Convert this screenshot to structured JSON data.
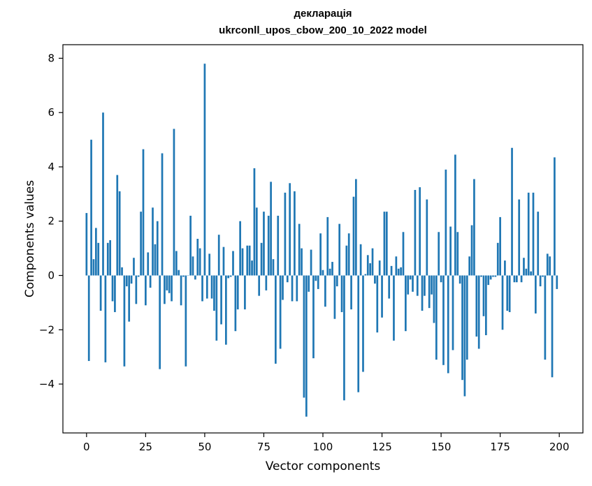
{
  "chart_data": {
    "type": "bar",
    "title": "декларація",
    "subtitle": "ukrconll_upos_cbow_200_10_2022 model",
    "xlabel": "Vector components",
    "ylabel": "Components values",
    "xlim": [
      -10,
      210
    ],
    "ylim": [
      -5.8,
      8.5
    ],
    "x_ticks": [
      0,
      25,
      50,
      75,
      100,
      125,
      150,
      175,
      200
    ],
    "y_ticks": [
      -4,
      -2,
      0,
      2,
      4,
      6,
      8
    ],
    "y_tick_labels": [
      "−4",
      "−2",
      "0",
      "2",
      "4",
      "6",
      "8"
    ],
    "bar_color": "#1f77b4",
    "grid": false,
    "x": [
      0,
      1,
      2,
      3,
      4,
      5,
      6,
      7,
      8,
      9,
      10,
      11,
      12,
      13,
      14,
      15,
      16,
      17,
      18,
      19,
      20,
      21,
      22,
      23,
      24,
      25,
      26,
      27,
      28,
      29,
      30,
      31,
      32,
      33,
      34,
      35,
      36,
      37,
      38,
      39,
      40,
      41,
      42,
      43,
      44,
      45,
      46,
      47,
      48,
      49,
      50,
      51,
      52,
      53,
      54,
      55,
      56,
      57,
      58,
      59,
      60,
      61,
      62,
      63,
      64,
      65,
      66,
      67,
      68,
      69,
      70,
      71,
      72,
      73,
      74,
      75,
      76,
      77,
      78,
      79,
      80,
      81,
      82,
      83,
      84,
      85,
      86,
      87,
      88,
      89,
      90,
      91,
      92,
      93,
      94,
      95,
      96,
      97,
      98,
      99,
      100,
      101,
      102,
      103,
      104,
      105,
      106,
      107,
      108,
      109,
      110,
      111,
      112,
      113,
      114,
      115,
      116,
      117,
      118,
      119,
      120,
      121,
      122,
      123,
      124,
      125,
      126,
      127,
      128,
      129,
      130,
      131,
      132,
      133,
      134,
      135,
      136,
      137,
      138,
      139,
      140,
      141,
      142,
      143,
      144,
      145,
      146,
      147,
      148,
      149,
      150,
      151,
      152,
      153,
      154,
      155,
      156,
      157,
      158,
      159,
      160,
      161,
      162,
      163,
      164,
      165,
      166,
      167,
      168,
      169,
      170,
      171,
      172,
      173,
      174,
      175,
      176,
      177,
      178,
      179,
      180,
      181,
      182,
      183,
      184,
      185,
      186,
      187,
      188,
      189,
      190,
      191,
      192,
      193,
      194,
      195,
      196,
      197,
      198,
      199
    ],
    "values": [
      2.3,
      -3.15,
      5.0,
      0.6,
      1.75,
      1.2,
      -1.3,
      6.0,
      -3.2,
      1.2,
      1.3,
      -0.95,
      -1.35,
      3.7,
      3.1,
      0.3,
      -3.35,
      -0.4,
      -1.7,
      -0.3,
      0.65,
      -1.05,
      -0.05,
      2.35,
      4.65,
      -1.1,
      0.85,
      -0.45,
      2.5,
      1.15,
      2.0,
      -3.45,
      4.5,
      -1.05,
      -0.55,
      -0.65,
      -0.95,
      5.4,
      0.9,
      0.2,
      -1.1,
      -0.05,
      -3.35,
      0.0,
      2.2,
      0.7,
      -0.15,
      1.35,
      1.0,
      -0.95,
      7.8,
      -0.85,
      0.8,
      -0.85,
      -1.3,
      -2.4,
      1.5,
      -1.8,
      1.05,
      -2.55,
      -0.1,
      -0.05,
      0.9,
      -2.05,
      -1.25,
      2.0,
      1.0,
      -1.25,
      1.1,
      1.1,
      0.55,
      3.95,
      2.5,
      -0.75,
      1.2,
      2.35,
      -0.55,
      2.2,
      3.45,
      0.6,
      -3.25,
      2.2,
      -2.7,
      -0.9,
      3.05,
      -0.25,
      3.4,
      -0.95,
      3.1,
      -0.95,
      1.9,
      1.0,
      -4.5,
      -5.2,
      -0.6,
      0.95,
      -3.05,
      -0.2,
      -0.5,
      1.55,
      0.2,
      -1.15,
      2.15,
      0.25,
      0.5,
      -1.6,
      -0.4,
      1.9,
      -1.35,
      -4.6,
      1.1,
      1.55,
      -1.25,
      2.9,
      3.55,
      -4.3,
      1.15,
      -3.55,
      0.05,
      0.75,
      0.45,
      1.0,
      -0.3,
      -2.1,
      0.55,
      -1.55,
      2.35,
      2.35,
      -0.85,
      0.35,
      -2.4,
      0.7,
      0.25,
      0.3,
      1.6,
      -2.05,
      -0.7,
      -0.15,
      -0.6,
      3.15,
      -0.75,
      3.25,
      -1.3,
      -0.75,
      2.8,
      -1.2,
      -0.7,
      -1.75,
      -3.1,
      1.6,
      -0.25,
      -3.3,
      3.9,
      -3.6,
      1.8,
      -2.75,
      4.45,
      1.6,
      -0.3,
      -3.85,
      -4.45,
      -3.1,
      0.7,
      1.85,
      3.55,
      -2.25,
      -2.7,
      -0.05,
      -1.5,
      -2.2,
      -0.35,
      -0.15,
      -0.05,
      -0.05,
      1.2,
      2.15,
      -2.0,
      0.55,
      -1.3,
      -1.35,
      4.7,
      -0.25,
      -0.25,
      2.8,
      -0.25,
      0.65,
      0.25,
      3.05,
      0.15,
      3.05,
      -1.4,
      2.35,
      -0.4,
      -0.05,
      -3.1,
      0.8,
      0.7,
      -3.75,
      4.35,
      -0.5
    ]
  }
}
